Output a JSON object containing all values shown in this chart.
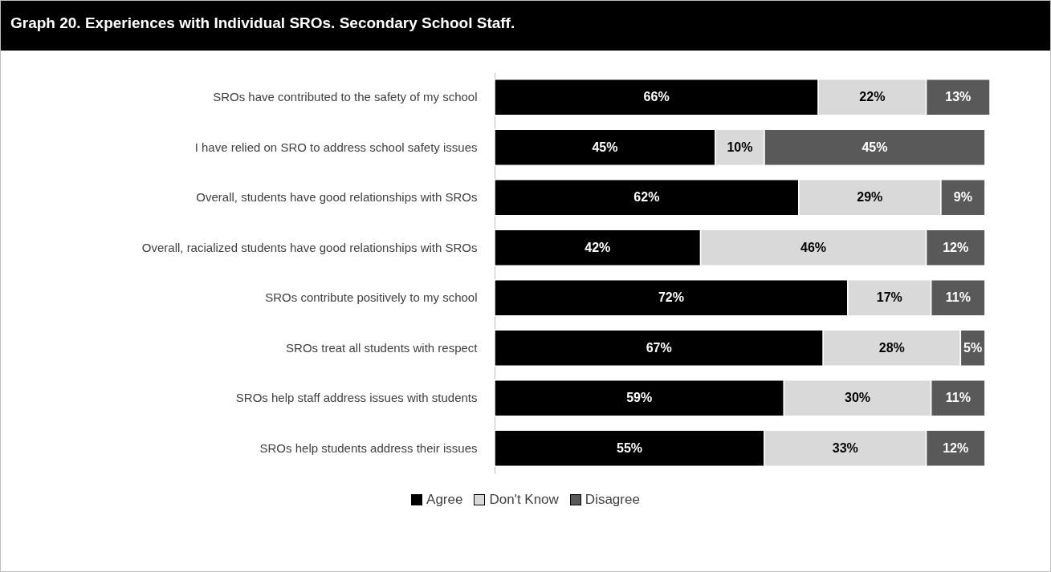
{
  "chart_data": {
    "type": "bar",
    "title": "Graph 20. Experiences with Individual SROs. Secondary School Staff.",
    "orientation": "horizontal",
    "stacked": true,
    "legend": "bottom",
    "categories": [
      "SROs have contributed to the safety of my school",
      "I have relied on SRO to address school safety issues",
      "Overall, students have good relationships with SROs",
      "Overall, racialized students have good relationships with SROs",
      "SROs contribute positively to my school",
      "SROs treat all students with respect",
      "SROs help staff address issues with students",
      "SROs help students address their issues"
    ],
    "series": [
      {
        "name": "Agree",
        "color": "#000000",
        "values": [
          66,
          45,
          62,
          42,
          72,
          67,
          59,
          55
        ],
        "value_labels": [
          "66%",
          "45%",
          "62%",
          "42%",
          "72%",
          "67%",
          "59%",
          "55%"
        ]
      },
      {
        "name": "Don't Know",
        "color": "#d9d9d9",
        "values": [
          22,
          10,
          29,
          46,
          17,
          28,
          30,
          33
        ],
        "value_labels": [
          "22%",
          "10%",
          "29%",
          "46%",
          "17%",
          "28%",
          "30%",
          "33%"
        ]
      },
      {
        "name": "Disagree",
        "color": "#595959",
        "values": [
          13,
          45,
          9,
          12,
          11,
          5,
          11,
          12
        ],
        "value_labels": [
          "13%",
          "45%",
          "9%",
          "12%",
          "11%",
          "5%",
          "11%",
          "12%"
        ]
      }
    ]
  }
}
